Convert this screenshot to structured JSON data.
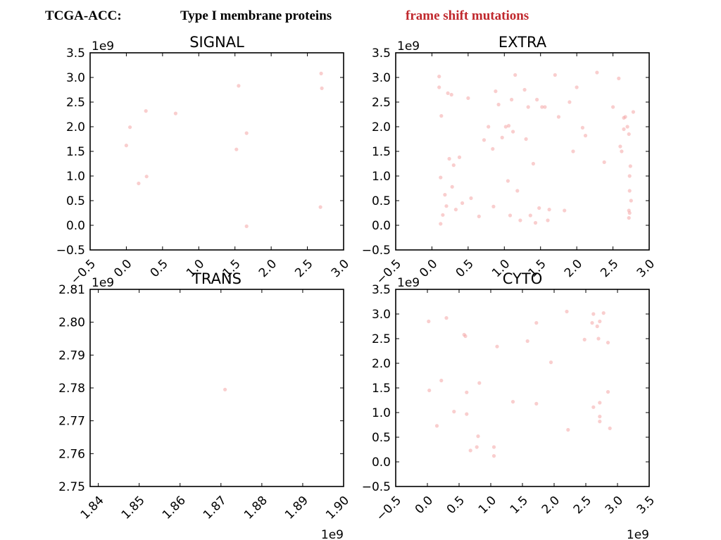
{
  "header": {
    "dataset": "TCGA-ACC:",
    "protein_class": "Type I membrane proteins",
    "mutation_type": "frame shift mutations",
    "mutation_color": "#c0282d"
  },
  "point_color": "#f4a6a6",
  "chart_data": [
    {
      "type": "scatter",
      "title": "SIGNAL",
      "x_ticks": [
        "−0.5",
        "0.0",
        "0.5",
        "1.0",
        "1.5",
        "2.0",
        "2.5",
        "3.0"
      ],
      "y_ticks": [
        "−0.5",
        "0.0",
        "0.5",
        "1.0",
        "1.5",
        "2.0",
        "2.5",
        "3.0",
        "3.5"
      ],
      "x_tick_values": [
        -0.5,
        0,
        0.5,
        1,
        1.5,
        2,
        2.5,
        3
      ],
      "y_tick_values": [
        -0.5,
        0,
        0.5,
        1,
        1.5,
        2,
        2.5,
        3,
        3.5
      ],
      "xlim": [
        -0.5,
        3.0
      ],
      "ylim": [
        -0.5,
        3.5
      ],
      "x_offset": "",
      "y_offset": "1e9",
      "points": [
        [
          0.0,
          1.62
        ],
        [
          0.05,
          1.99
        ],
        [
          0.17,
          0.85
        ],
        [
          0.27,
          2.32
        ],
        [
          0.28,
          0.99
        ],
        [
          0.68,
          2.27
        ],
        [
          1.52,
          1.54
        ],
        [
          1.55,
          2.83
        ],
        [
          1.66,
          1.87
        ],
        [
          1.66,
          -0.02
        ],
        [
          2.68,
          0.37
        ],
        [
          2.69,
          3.08
        ],
        [
          2.7,
          2.78
        ]
      ]
    },
    {
      "type": "scatter",
      "title": "EXTRA",
      "x_ticks": [
        "−0.5",
        "0.0",
        "0.5",
        "1.0",
        "1.5",
        "2.0",
        "2.5",
        "3.0"
      ],
      "y_ticks": [
        "−0.5",
        "0.0",
        "0.5",
        "1.0",
        "1.5",
        "2.0",
        "2.5",
        "3.0",
        "3.5"
      ],
      "x_tick_values": [
        -0.5,
        0,
        0.5,
        1,
        1.5,
        2,
        2.5,
        3
      ],
      "y_tick_values": [
        -0.5,
        0,
        0.5,
        1,
        1.5,
        2,
        2.5,
        3,
        3.5
      ],
      "xlim": [
        -0.5,
        3.0
      ],
      "ylim": [
        -0.5,
        3.5
      ],
      "x_offset": "",
      "y_offset": "1e9",
      "points": [
        [
          0.1,
          3.02
        ],
        [
          0.1,
          2.8
        ],
        [
          0.13,
          2.22
        ],
        [
          0.12,
          0.97
        ],
        [
          0.12,
          0.03
        ],
        [
          0.15,
          0.21
        ],
        [
          0.18,
          0.62
        ],
        [
          0.2,
          0.39
        ],
        [
          0.22,
          2.68
        ],
        [
          0.24,
          1.35
        ],
        [
          0.27,
          2.65
        ],
        [
          0.28,
          0.78
        ],
        [
          0.3,
          1.22
        ],
        [
          0.33,
          0.32
        ],
        [
          0.38,
          1.38
        ],
        [
          0.42,
          0.45
        ],
        [
          0.5,
          2.58
        ],
        [
          0.54,
          0.55
        ],
        [
          0.65,
          0.18
        ],
        [
          0.72,
          1.73
        ],
        [
          0.78,
          2.0
        ],
        [
          0.84,
          1.55
        ],
        [
          0.85,
          0.38
        ],
        [
          0.88,
          2.72
        ],
        [
          0.92,
          2.45
        ],
        [
          0.97,
          1.78
        ],
        [
          1.02,
          2.0
        ],
        [
          1.05,
          0.9
        ],
        [
          1.06,
          2.02
        ],
        [
          1.08,
          0.2
        ],
        [
          1.1,
          2.55
        ],
        [
          1.12,
          1.9
        ],
        [
          1.15,
          3.05
        ],
        [
          1.18,
          0.7
        ],
        [
          1.22,
          0.1
        ],
        [
          1.28,
          2.75
        ],
        [
          1.3,
          1.75
        ],
        [
          1.33,
          2.4
        ],
        [
          1.36,
          0.2
        ],
        [
          1.4,
          1.25
        ],
        [
          1.43,
          0.05
        ],
        [
          1.45,
          2.55
        ],
        [
          1.48,
          0.35
        ],
        [
          1.52,
          2.4
        ],
        [
          1.56,
          2.4
        ],
        [
          1.6,
          0.1
        ],
        [
          1.62,
          0.32
        ],
        [
          1.7,
          3.05
        ],
        [
          1.75,
          2.2
        ],
        [
          1.83,
          0.3
        ],
        [
          1.9,
          2.5
        ],
        [
          1.95,
          1.5
        ],
        [
          2.0,
          2.8
        ],
        [
          2.08,
          1.98
        ],
        [
          2.12,
          1.82
        ],
        [
          2.28,
          3.1
        ],
        [
          2.38,
          1.28
        ],
        [
          2.5,
          2.4
        ],
        [
          2.58,
          2.98
        ],
        [
          2.6,
          1.6
        ],
        [
          2.62,
          1.5
        ],
        [
          2.65,
          2.18
        ],
        [
          2.65,
          1.95
        ],
        [
          2.67,
          2.2
        ],
        [
          2.7,
          2.0
        ],
        [
          2.72,
          1.85
        ],
        [
          2.72,
          0.3
        ],
        [
          2.72,
          0.15
        ],
        [
          2.73,
          1.0
        ],
        [
          2.73,
          0.7
        ],
        [
          2.73,
          0.25
        ],
        [
          2.74,
          1.2
        ],
        [
          2.75,
          0.5
        ],
        [
          2.78,
          2.3
        ]
      ]
    },
    {
      "type": "scatter",
      "title": "TRANS",
      "x_ticks": [
        "1.84",
        "1.85",
        "1.86",
        "1.87",
        "1.88",
        "1.89",
        "1.90"
      ],
      "y_ticks": [
        "2.75",
        "2.76",
        "2.77",
        "2.78",
        "2.79",
        "2.80",
        "2.81"
      ],
      "x_tick_values": [
        1.84,
        1.85,
        1.86,
        1.87,
        1.88,
        1.89,
        1.9
      ],
      "y_tick_values": [
        2.75,
        2.76,
        2.77,
        2.78,
        2.79,
        2.8,
        2.81
      ],
      "xlim": [
        1.838,
        1.9
      ],
      "ylim": [
        2.75,
        2.81
      ],
      "x_offset": "1e9",
      "y_offset": "1e9",
      "points": [
        [
          1.871,
          2.7795
        ]
      ]
    },
    {
      "type": "scatter",
      "title": "CYTO",
      "x_ticks": [
        "−0.5",
        "0.0",
        "0.5",
        "1.0",
        "1.5",
        "2.0",
        "2.5",
        "3.0",
        "3.5"
      ],
      "y_ticks": [
        "−0.5",
        "0.0",
        "0.5",
        "1.0",
        "1.5",
        "2.0",
        "2.5",
        "3.0",
        "3.5"
      ],
      "x_tick_values": [
        -0.5,
        0,
        0.5,
        1,
        1.5,
        2,
        2.5,
        3,
        3.5
      ],
      "y_tick_values": [
        -0.5,
        0,
        0.5,
        1,
        1.5,
        2,
        2.5,
        3,
        3.5
      ],
      "xlim": [
        -0.5,
        3.5
      ],
      "ylim": [
        -0.5,
        3.5
      ],
      "x_offset": "1e9",
      "y_offset": "1e9",
      "points": [
        [
          0.02,
          2.85
        ],
        [
          0.03,
          1.45
        ],
        [
          0.15,
          0.73
        ],
        [
          0.22,
          1.65
        ],
        [
          0.3,
          2.92
        ],
        [
          0.42,
          1.02
        ],
        [
          0.58,
          2.58
        ],
        [
          0.6,
          2.55
        ],
        [
          0.62,
          1.41
        ],
        [
          0.62,
          0.97
        ],
        [
          0.68,
          0.23
        ],
        [
          0.78,
          0.3
        ],
        [
          0.8,
          0.52
        ],
        [
          0.82,
          1.6
        ],
        [
          1.05,
          0.12
        ],
        [
          1.05,
          0.3
        ],
        [
          1.1,
          2.34
        ],
        [
          1.35,
          1.22
        ],
        [
          1.58,
          2.45
        ],
        [
          1.72,
          2.82
        ],
        [
          1.72,
          1.18
        ],
        [
          1.95,
          2.02
        ],
        [
          2.2,
          3.05
        ],
        [
          2.22,
          0.65
        ],
        [
          2.48,
          2.48
        ],
        [
          2.6,
          2.82
        ],
        [
          2.62,
          3.0
        ],
        [
          2.62,
          1.11
        ],
        [
          2.68,
          2.75
        ],
        [
          2.7,
          2.5
        ],
        [
          2.72,
          2.85
        ],
        [
          2.72,
          1.2
        ],
        [
          2.72,
          0.92
        ],
        [
          2.72,
          0.82
        ],
        [
          2.78,
          3.02
        ],
        [
          2.85,
          2.42
        ],
        [
          2.85,
          1.42
        ],
        [
          2.88,
          0.68
        ]
      ]
    }
  ]
}
